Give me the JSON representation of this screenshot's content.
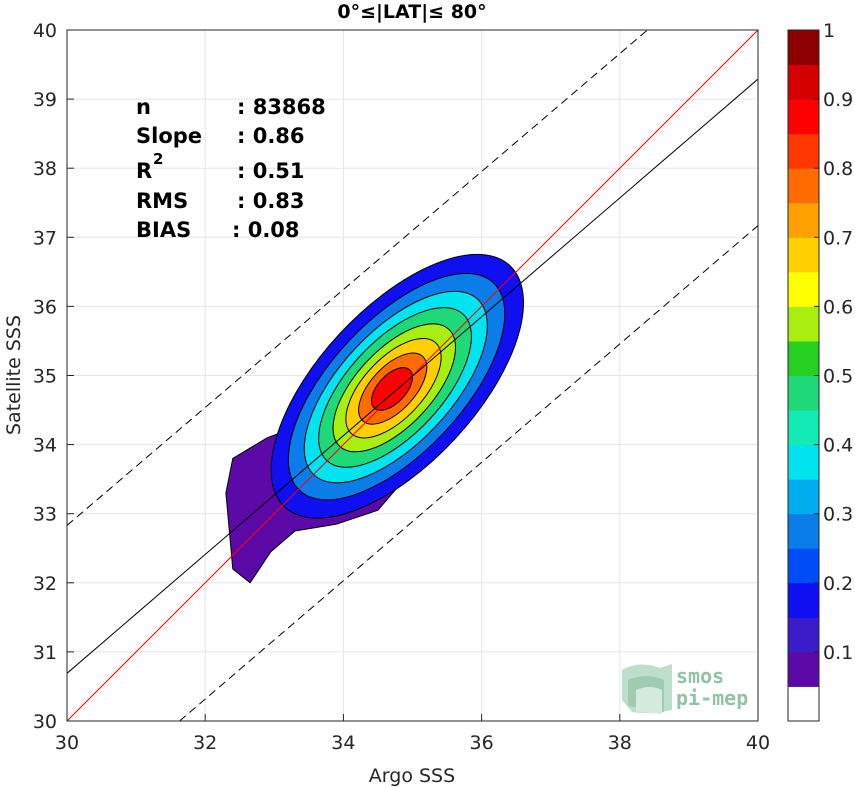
{
  "chart_data": {
    "type": "contour",
    "title": "0°≤|LAT|≤ 80°",
    "xlabel": "Argo SSS",
    "ylabel": "Satellite SSS",
    "xlim": [
      30,
      40
    ],
    "ylim": [
      30,
      40
    ],
    "xticks": [
      "30",
      "32",
      "34",
      "36",
      "38",
      "40"
    ],
    "yticks": [
      "30",
      "31",
      "32",
      "33",
      "34",
      "35",
      "36",
      "37",
      "38",
      "39",
      "40"
    ],
    "grid": true,
    "stats": {
      "n_label": "n",
      "n_value": ": 83868",
      "slope_label": "Slope",
      "slope_value": ": 0.86",
      "r2_label": "R",
      "r2_sup": "2",
      "r2_value": ": 0.51",
      "rms_label": "RMS",
      "rms_value": ": 0.83",
      "bias_label": "BIAS",
      "bias_value": ": 0.08"
    },
    "lines": [
      {
        "name": "one-to-one",
        "color": "#ff0000",
        "style": "solid",
        "points": [
          [
            30,
            30
          ],
          [
            40,
            40
          ]
        ]
      },
      {
        "name": "fit",
        "color": "#000000",
        "style": "solid",
        "points": [
          [
            30,
            30.69
          ],
          [
            40,
            39.29
          ]
        ]
      },
      {
        "name": "upper-bound",
        "color": "#000000",
        "style": "dashed",
        "points": [
          [
            30,
            32.83
          ],
          [
            38.4,
            40
          ]
        ]
      },
      {
        "name": "lower-bound",
        "color": "#000000",
        "style": "dashed",
        "points": [
          [
            31.63,
            30
          ],
          [
            40,
            37.17
          ]
        ]
      }
    ],
    "density_peak": [
      34.7,
      34.8
    ],
    "contour_levels": [
      0.05,
      0.15,
      0.25,
      0.35,
      0.45,
      0.55,
      0.65,
      0.75,
      0.85
    ],
    "colorbar": {
      "ticks": [
        "0.1",
        "0.2",
        "0.3",
        "0.4",
        "0.5",
        "0.6",
        "0.7",
        "0.8",
        "0.9",
        "1"
      ],
      "colors": [
        "#ffffff",
        "#5b0aa8",
        "#3a1dc8",
        "#0f0ff2",
        "#004cf6",
        "#0a7de8",
        "#00aef0",
        "#00e4f0",
        "#10ecb4",
        "#1fd877",
        "#25d023",
        "#a8ee10",
        "#ffff00",
        "#ffcf00",
        "#ff9f00",
        "#ff6b00",
        "#ff3800",
        "#ff0000",
        "#d40000",
        "#8c0000"
      ]
    }
  },
  "logo": {
    "line1": "smos",
    "line2": "pi-mep"
  },
  "colors": {
    "one_to_one": "#ff0000",
    "fit": "#000000",
    "grid": "#e6e6e6",
    "logo": "#8fc4a6"
  }
}
